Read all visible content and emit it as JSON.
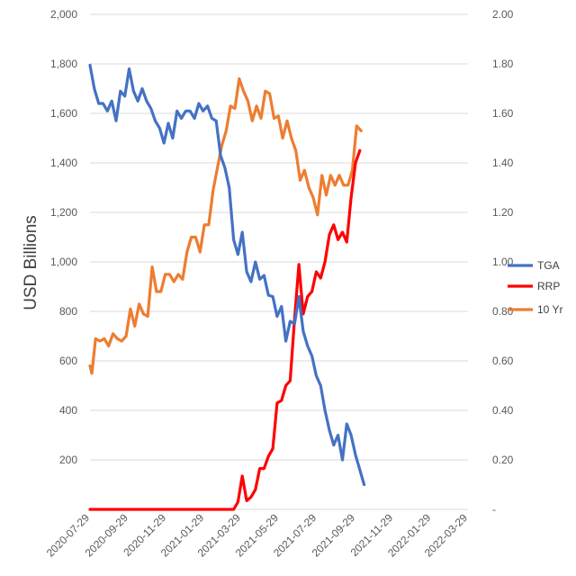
{
  "chart_data": {
    "type": "line",
    "title": "",
    "ylabel": "USD Billions",
    "y2label": "",
    "xlabel": "",
    "ylim": [
      0,
      2000
    ],
    "y2lim": [
      0,
      2
    ],
    "grid": true,
    "legend_position": "right",
    "y_ticks": [
      "",
      "200",
      "400",
      "600",
      "800",
      "1,000",
      "1,200",
      "1,400",
      "1,600",
      "1,800",
      "2,000"
    ],
    "y2_ticks": [
      "-",
      "0.20",
      "0.40",
      "0.60",
      "0.80",
      "1.00",
      "1.20",
      "1.40",
      "1.60",
      "1.80",
      "2.00"
    ],
    "x_ticks": [
      "2020-07-29",
      "2020-09-29",
      "2020-11-29",
      "2021-01-29",
      "2021-03-29",
      "2021-05-29",
      "2021-07-29",
      "2021-09-29",
      "2021-11-29",
      "2022-01-29",
      "2022-03-29"
    ],
    "series": [
      {
        "name": "TGA",
        "axis": "left",
        "color": "#4472c4",
        "points": [
          [
            "2020-07-29",
            1795
          ],
          [
            "2020-08-05",
            1700
          ],
          [
            "2020-08-12",
            1640
          ],
          [
            "2020-08-19",
            1640
          ],
          [
            "2020-08-26",
            1610
          ],
          [
            "2020-09-02",
            1650
          ],
          [
            "2020-09-09",
            1570
          ],
          [
            "2020-09-16",
            1690
          ],
          [
            "2020-09-23",
            1670
          ],
          [
            "2020-09-30",
            1780
          ],
          [
            "2020-10-07",
            1690
          ],
          [
            "2020-10-14",
            1650
          ],
          [
            "2020-10-21",
            1700
          ],
          [
            "2020-10-28",
            1650
          ],
          [
            "2020-11-04",
            1620
          ],
          [
            "2020-11-11",
            1570
          ],
          [
            "2020-11-18",
            1540
          ],
          [
            "2020-11-25",
            1480
          ],
          [
            "2020-12-02",
            1560
          ],
          [
            "2020-12-09",
            1500
          ],
          [
            "2020-12-16",
            1610
          ],
          [
            "2020-12-23",
            1580
          ],
          [
            "2020-12-30",
            1610
          ],
          [
            "2021-01-06",
            1610
          ],
          [
            "2021-01-13",
            1580
          ],
          [
            "2021-01-20",
            1640
          ],
          [
            "2021-01-27",
            1610
          ],
          [
            "2021-02-03",
            1630
          ],
          [
            "2021-02-10",
            1580
          ],
          [
            "2021-02-17",
            1570
          ],
          [
            "2021-02-24",
            1430
          ],
          [
            "2021-03-03",
            1380
          ],
          [
            "2021-03-10",
            1300
          ],
          [
            "2021-03-17",
            1090
          ],
          [
            "2021-03-24",
            1030
          ],
          [
            "2021-03-31",
            1120
          ],
          [
            "2021-04-07",
            960
          ],
          [
            "2021-04-14",
            920
          ],
          [
            "2021-04-21",
            1000
          ],
          [
            "2021-04-28",
            930
          ],
          [
            "2021-05-05",
            945
          ],
          [
            "2021-05-12",
            865
          ],
          [
            "2021-05-19",
            860
          ],
          [
            "2021-05-26",
            780
          ],
          [
            "2021-06-02",
            820
          ],
          [
            "2021-06-09",
            680
          ],
          [
            "2021-06-16",
            760
          ],
          [
            "2021-06-23",
            750
          ],
          [
            "2021-06-30",
            860
          ],
          [
            "2021-07-07",
            720
          ],
          [
            "2021-07-14",
            660
          ],
          [
            "2021-07-21",
            620
          ],
          [
            "2021-07-28",
            540
          ],
          [
            "2021-08-04",
            500
          ],
          [
            "2021-08-11",
            400
          ],
          [
            "2021-08-18",
            320
          ],
          [
            "2021-08-25",
            260
          ],
          [
            "2021-09-01",
            300
          ],
          [
            "2021-09-08",
            200
          ],
          [
            "2021-09-15",
            345
          ],
          [
            "2021-09-22",
            300
          ],
          [
            "2021-09-29",
            220
          ],
          [
            "2021-10-06",
            160
          ],
          [
            "2021-10-13",
            100
          ]
        ]
      },
      {
        "name": "RRP",
        "axis": "left",
        "color": "#ff0000",
        "points": [
          [
            "2020-07-29",
            0
          ],
          [
            "2020-12-01",
            0
          ],
          [
            "2021-03-17",
            0
          ],
          [
            "2021-03-24",
            30
          ],
          [
            "2021-03-31",
            135
          ],
          [
            "2021-04-07",
            35
          ],
          [
            "2021-04-14",
            50
          ],
          [
            "2021-04-21",
            80
          ],
          [
            "2021-04-28",
            165
          ],
          [
            "2021-05-05",
            165
          ],
          [
            "2021-05-12",
            215
          ],
          [
            "2021-05-19",
            245
          ],
          [
            "2021-05-26",
            430
          ],
          [
            "2021-06-02",
            440
          ],
          [
            "2021-06-09",
            500
          ],
          [
            "2021-06-16",
            520
          ],
          [
            "2021-06-23",
            770
          ],
          [
            "2021-06-30",
            990
          ],
          [
            "2021-07-07",
            790
          ],
          [
            "2021-07-14",
            860
          ],
          [
            "2021-07-21",
            880
          ],
          [
            "2021-07-28",
            960
          ],
          [
            "2021-08-04",
            935
          ],
          [
            "2021-08-11",
            1000
          ],
          [
            "2021-08-18",
            1110
          ],
          [
            "2021-08-25",
            1150
          ],
          [
            "2021-09-01",
            1090
          ],
          [
            "2021-09-08",
            1120
          ],
          [
            "2021-09-15",
            1080
          ],
          [
            "2021-09-22",
            1260
          ],
          [
            "2021-09-29",
            1400
          ],
          [
            "2021-10-06",
            1450
          ]
        ]
      },
      {
        "name": "10 Yr",
        "axis": "right",
        "color": "#ed7d31",
        "points": [
          [
            "2020-07-29",
            0.58
          ],
          [
            "2020-08-01",
            0.55
          ],
          [
            "2020-08-07",
            0.69
          ],
          [
            "2020-08-14",
            0.68
          ],
          [
            "2020-08-21",
            0.69
          ],
          [
            "2020-08-28",
            0.66
          ],
          [
            "2020-09-04",
            0.71
          ],
          [
            "2020-09-11",
            0.69
          ],
          [
            "2020-09-18",
            0.68
          ],
          [
            "2020-09-25",
            0.7
          ],
          [
            "2020-10-02",
            0.81
          ],
          [
            "2020-10-09",
            0.74
          ],
          [
            "2020-10-16",
            0.83
          ],
          [
            "2020-10-23",
            0.79
          ],
          [
            "2020-10-30",
            0.78
          ],
          [
            "2020-11-06",
            0.98
          ],
          [
            "2020-11-13",
            0.88
          ],
          [
            "2020-11-20",
            0.88
          ],
          [
            "2020-11-27",
            0.95
          ],
          [
            "2020-12-04",
            0.95
          ],
          [
            "2020-12-11",
            0.92
          ],
          [
            "2020-12-18",
            0.95
          ],
          [
            "2020-12-25",
            0.93
          ],
          [
            "2021-01-01",
            1.04
          ],
          [
            "2021-01-08",
            1.1
          ],
          [
            "2021-01-15",
            1.1
          ],
          [
            "2021-01-22",
            1.04
          ],
          [
            "2021-01-29",
            1.15
          ],
          [
            "2021-02-05",
            1.15
          ],
          [
            "2021-02-12",
            1.29
          ],
          [
            "2021-02-19",
            1.38
          ],
          [
            "2021-02-26",
            1.47
          ],
          [
            "2021-03-05",
            1.53
          ],
          [
            "2021-03-12",
            1.63
          ],
          [
            "2021-03-19",
            1.62
          ],
          [
            "2021-03-26",
            1.74
          ],
          [
            "2021-04-02",
            1.69
          ],
          [
            "2021-04-09",
            1.65
          ],
          [
            "2021-04-16",
            1.57
          ],
          [
            "2021-04-23",
            1.63
          ],
          [
            "2021-04-30",
            1.58
          ],
          [
            "2021-05-07",
            1.69
          ],
          [
            "2021-05-14",
            1.68
          ],
          [
            "2021-05-21",
            1.58
          ],
          [
            "2021-05-28",
            1.59
          ],
          [
            "2021-06-04",
            1.5
          ],
          [
            "2021-06-11",
            1.57
          ],
          [
            "2021-06-18",
            1.5
          ],
          [
            "2021-06-25",
            1.45
          ],
          [
            "2021-07-02",
            1.33
          ],
          [
            "2021-07-09",
            1.37
          ],
          [
            "2021-07-16",
            1.3
          ],
          [
            "2021-07-23",
            1.26
          ],
          [
            "2021-07-30",
            1.19
          ],
          [
            "2021-08-06",
            1.35
          ],
          [
            "2021-08-13",
            1.27
          ],
          [
            "2021-08-20",
            1.35
          ],
          [
            "2021-08-27",
            1.31
          ],
          [
            "2021-09-03",
            1.35
          ],
          [
            "2021-09-10",
            1.31
          ],
          [
            "2021-09-17",
            1.31
          ],
          [
            "2021-09-24",
            1.37
          ],
          [
            "2021-10-01",
            1.55
          ],
          [
            "2021-10-08",
            1.53
          ]
        ]
      }
    ]
  }
}
